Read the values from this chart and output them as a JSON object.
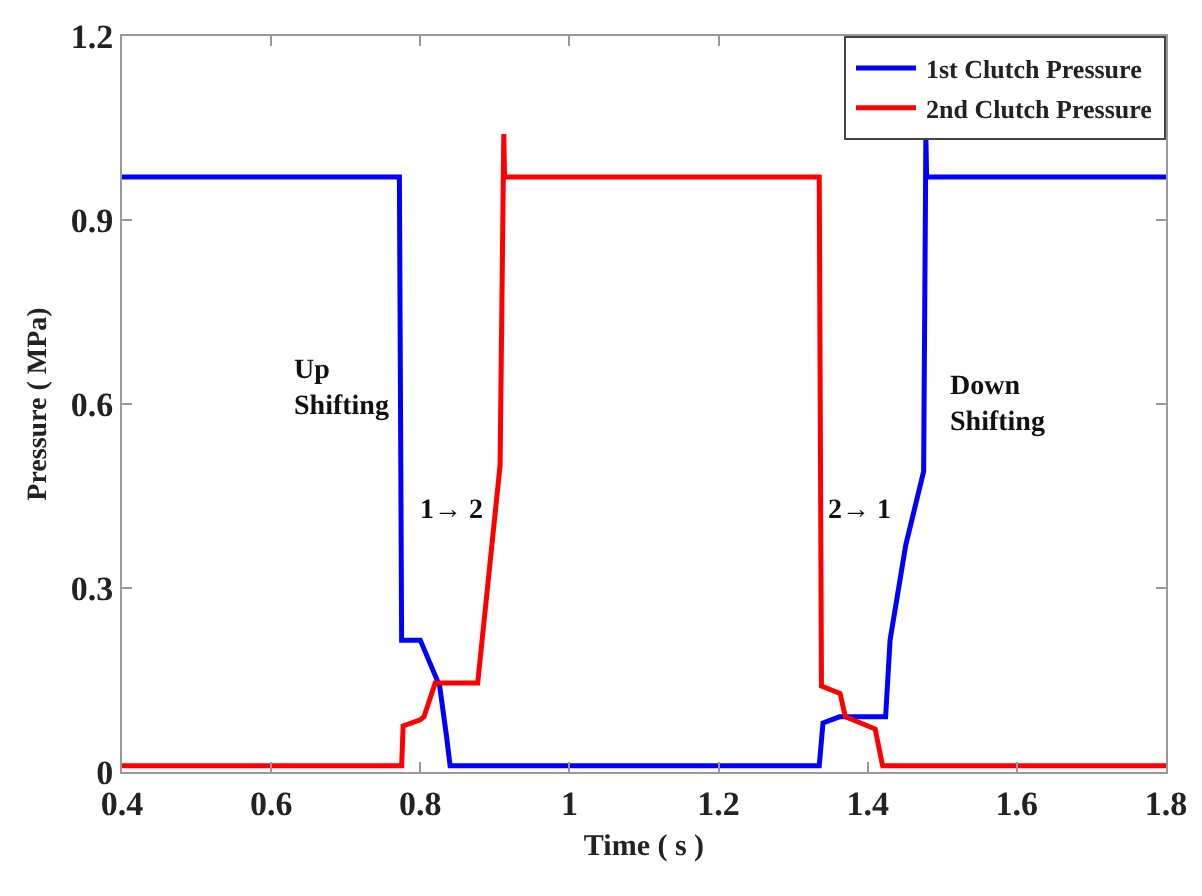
{
  "chart_data": {
    "type": "line",
    "xlabel": "Time ( s )",
    "ylabel": "Pressure ( MPa)",
    "xlim": [
      0.4,
      1.8
    ],
    "xticks": [
      0.4,
      0.6,
      0.8,
      1,
      1.2,
      1.4,
      1.6,
      1.8
    ],
    "ylim": [
      0,
      1.2
    ],
    "yticks": [
      0,
      0.3,
      0.6,
      0.9,
      1.2
    ],
    "grid": false,
    "legend": "top right",
    "marker": "none",
    "line_style": "solid",
    "annotations": [
      "Up\nShifting",
      "1→ 2",
      "Down\nShifting",
      "2→ 1"
    ],
    "series": [
      {
        "name": "1st Clutch Pressure",
        "color": "#0000ff",
        "x": [
          0.4,
          0.772,
          0.775,
          0.8,
          0.826,
          0.835,
          0.84,
          1.335,
          1.34,
          1.362,
          1.424,
          1.43,
          1.451,
          1.475,
          1.478,
          1.479,
          1.482,
          1.8
        ],
        "values": [
          0.97,
          0.97,
          0.215,
          0.215,
          0.14,
          0.06,
          0.01,
          0.01,
          0.08,
          0.09,
          0.09,
          0.215,
          0.37,
          0.49,
          1.035,
          0.97,
          0.97,
          0.97
        ]
      },
      {
        "name": "2nd Clutch Pressure",
        "color": "#ff0000",
        "x": [
          0.4,
          0.775,
          0.777,
          0.8,
          0.805,
          0.82,
          0.877,
          0.907,
          0.912,
          0.913,
          0.915,
          1.335,
          1.338,
          1.363,
          1.37,
          1.41,
          1.42,
          1.8
        ],
        "values": [
          0.01,
          0.01,
          0.075,
          0.085,
          0.09,
          0.145,
          0.145,
          0.5,
          1.04,
          0.97,
          0.97,
          0.97,
          0.14,
          0.128,
          0.09,
          0.07,
          0.01,
          0.01
        ]
      }
    ]
  }
}
